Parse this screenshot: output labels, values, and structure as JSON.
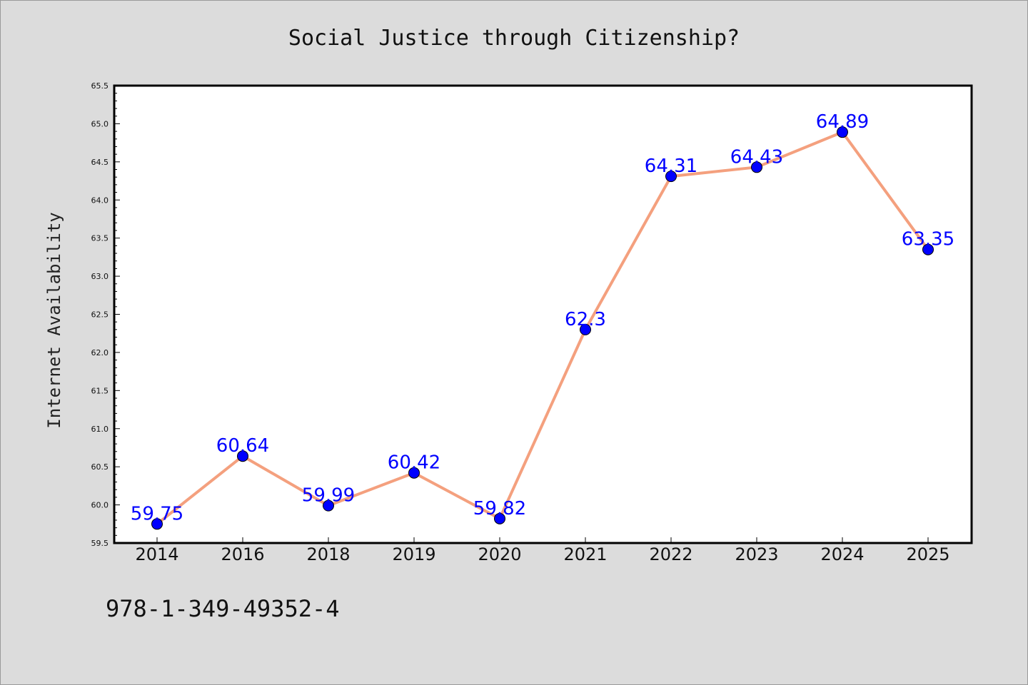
{
  "chart_data": {
    "type": "line",
    "title": "Social Justice through Citizenship?",
    "xlabel": "",
    "ylabel": "Internet Availability",
    "categories": [
      "2014",
      "2016",
      "2018",
      "2019",
      "2020",
      "2021",
      "2022",
      "2023",
      "2024",
      "2025"
    ],
    "values": [
      59.75,
      60.64,
      59.99,
      60.42,
      59.82,
      62.3,
      64.31,
      64.43,
      64.89,
      63.35
    ],
    "data_labels": [
      "59.75",
      "60.64",
      "59.99",
      "60.42",
      "59.82",
      "62.3",
      "64.31",
      "64.43",
      "64.89",
      "63.35"
    ],
    "ylim": [
      59.5,
      65.5
    ],
    "yticks": [
      "59.5",
      "60.0",
      "60.5",
      "61.0",
      "61.5",
      "62.0",
      "62.5",
      "63.0",
      "63.5",
      "64.0",
      "64.5",
      "65.0",
      "65.5"
    ],
    "grid": false,
    "legend": "none",
    "line_color": "#f4a07e",
    "marker_color": "#0000ff",
    "label_color": "#0000ff"
  },
  "footer_text": "978-1-349-49352-4"
}
